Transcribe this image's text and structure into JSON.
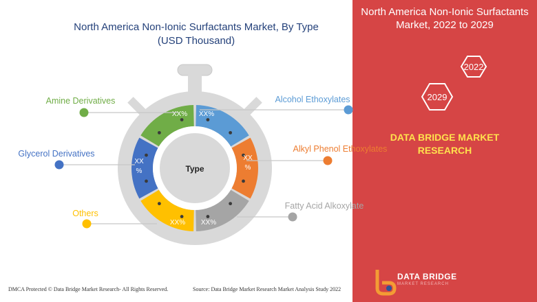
{
  "chart_data": {
    "type": "pie",
    "title": "North America Non-Ionic Surfactants Market, By Type",
    "subtitle": "(USD Thousand)",
    "center_label": "Type",
    "segments": [
      {
        "name": "Alcohol Ethoxylates",
        "label": "XX%",
        "color": "#5b9bd5",
        "start": 0,
        "end": 60
      },
      {
        "name": "Alkyl Phenol Ethoxylates",
        "label": "XX\n%",
        "color": "#ed7d31",
        "start": 60,
        "end": 120
      },
      {
        "name": "Fatty Acid Alkoxylate",
        "label": "XX%",
        "color": "#a5a5a5",
        "start": 120,
        "end": 180
      },
      {
        "name": "Others",
        "label": "XX%",
        "color": "#ffc000",
        "start": 180,
        "end": 240
      },
      {
        "name": "Glycerol Derivatives",
        "label": "XX\n%",
        "color": "#4472c4",
        "start": 240,
        "end": 300
      },
      {
        "name": "Amine Derivatives",
        "label": "XX%",
        "color": "#70ad47",
        "start": 300,
        "end": 360
      }
    ]
  },
  "side_panel": {
    "title_line1": "North America Non-Ionic Surfactants",
    "title_line2": "Market, 2022 to 2029",
    "year_start": "2029",
    "year_end": "2022",
    "brand_line1": "DATA BRIDGE MARKET",
    "brand_line2": "RESEARCH",
    "bg_color": "#d64545"
  },
  "footer": {
    "left": "DMCA Protected © Data Bridge Market Research- All Rights Reserved.",
    "source": "Source: Data Bridge Market Research Market Analysis Study 2022",
    "logo_line1": "DATA BRIDGE",
    "logo_line2": "MARKET RESEARCH"
  }
}
